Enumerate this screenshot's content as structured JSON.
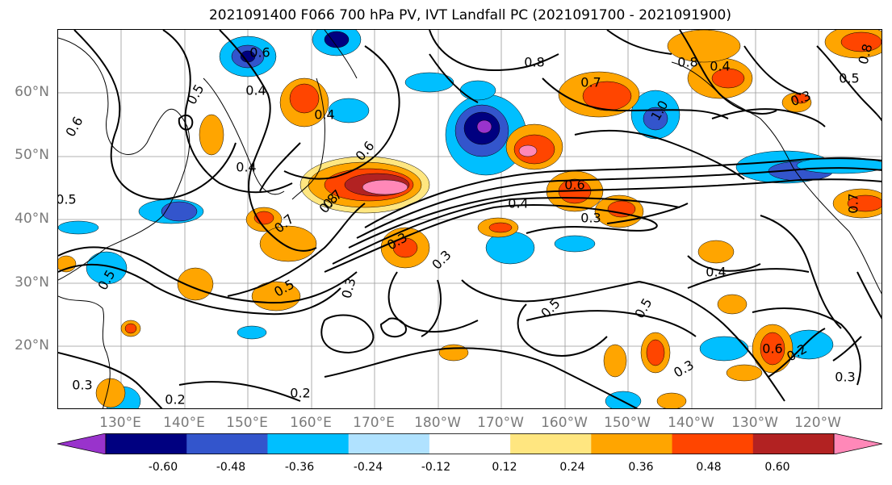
{
  "title": "2021091400 F066 700 hPa PV, IVT Landfall PC (2021091700 - 2021091900)",
  "map": {
    "latitude_labels": [
      "60°N",
      "50°N",
      "40°N",
      "30°N",
      "20°N"
    ],
    "longitude_labels": [
      "130°E",
      "140°E",
      "150°E",
      "160°E",
      "170°E",
      "180°W",
      "170°W",
      "160°W",
      "150°W",
      "140°W",
      "130°W",
      "120°W"
    ],
    "axis_label_color": "#7a7a7a",
    "gridlines": true,
    "contour_labels": [
      "0.6",
      "0.8",
      "0.4",
      "0.5",
      "0.6",
      "0.4",
      "0.5",
      "0.8",
      "0.7",
      "1.0",
      "0.4",
      "0.8",
      "0.7",
      "0.5",
      "0.4",
      "0.8",
      "0.6",
      "0.4",
      "0.6",
      "0.3",
      "0.7",
      "0.5",
      "0.3",
      "0.3",
      "0.3",
      "0.5",
      "0.5",
      "0.4",
      "0.3",
      "0.3",
      "0.2",
      "0.2",
      "0.3",
      "0.3",
      "0.6",
      "0.2",
      "0.5",
      "0.7"
    ]
  },
  "colorbar": {
    "tick_labels": [
      "-0.60",
      "-0.48",
      "-0.36",
      "-0.24",
      "-0.12",
      "0.12",
      "0.24",
      "0.36",
      "0.48",
      "0.60"
    ],
    "colors": [
      "#9933cc",
      "#000080",
      "#3355cc",
      "#00bfff",
      "#b0e2ff",
      "#ffffff",
      "#ffe680",
      "#ffa500",
      "#ff4500",
      "#b22222",
      "#ff88b8"
    ]
  }
}
